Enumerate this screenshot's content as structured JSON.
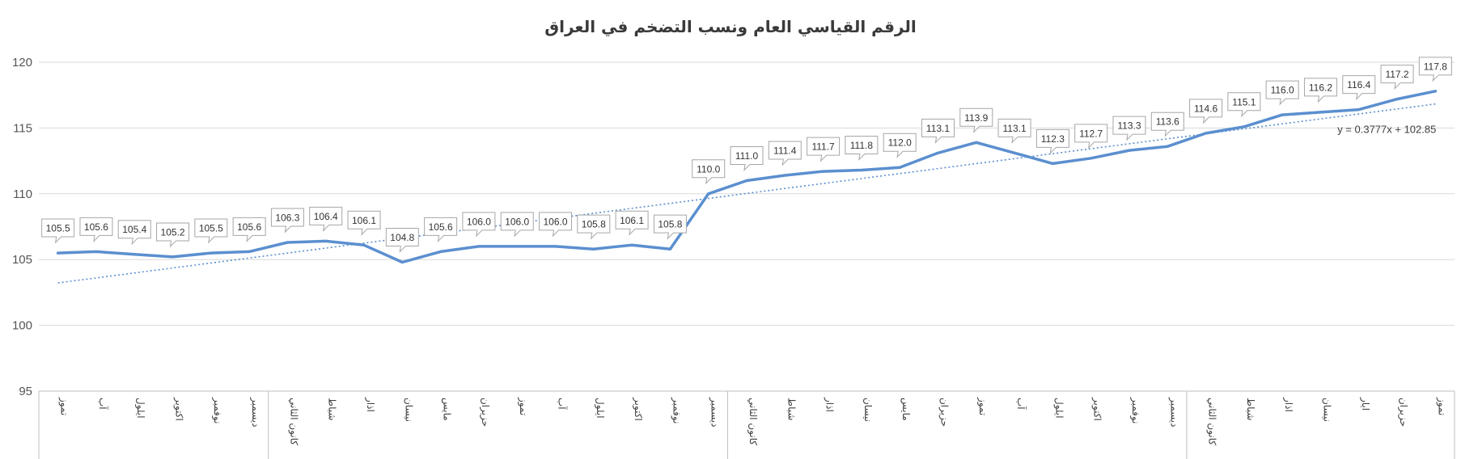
{
  "chart_data": {
    "type": "line",
    "title": "الرقم القياسي العام ونسب التضخم في العراق",
    "ylim": [
      95,
      120
    ],
    "yticks": [
      95,
      100,
      105,
      110,
      115,
      120
    ],
    "grid": true,
    "categories": [
      "تموز",
      "آب",
      "ايلول",
      "اكتوبر",
      "نوفمبر",
      "ديسمبر",
      "كانون الثاني",
      "شباط",
      "اذار",
      "نيسان",
      "مايس",
      "حزيران",
      "تموز",
      "آب",
      "ايلول",
      "اكتوبر",
      "نوفمبر",
      "ديسمبر",
      "كانون الثاني",
      "شباط",
      "اذار",
      "نيسان",
      "مايس",
      "حزيران",
      "تموز",
      "آب",
      "ايلول",
      "اكتوبر",
      "نوفمبر",
      "ديسمبر",
      "كانون الثاني",
      "شباط",
      "اذار",
      "نيسان",
      "ايار",
      "حزيران",
      "تموز"
    ],
    "series": [
      {
        "values": [
          105.5,
          105.6,
          105.4,
          105.2,
          105.5,
          105.6,
          106.3,
          106.4,
          106.1,
          104.8,
          105.6,
          106.0,
          106.0,
          106.0,
          105.8,
          106.1,
          105.8,
          110.0,
          111.0,
          111.4,
          111.7,
          111.8,
          112.0,
          113.1,
          113.9,
          113.1,
          112.3,
          112.7,
          113.3,
          113.6,
          114.6,
          115.1,
          116.0,
          116.2,
          116.4,
          117.2,
          117.8
        ],
        "color": "#5b8fcf",
        "data_labels": [
          "105.5",
          "105.6",
          "105.4",
          "105.2",
          "105.5",
          "105.6",
          "106.3",
          "106.4",
          "106.1",
          "104.8",
          "105.6",
          "106.0",
          "106.0",
          "106.0",
          "105.8",
          "106.1",
          "105.8",
          "110.0",
          "111.0",
          "111.4",
          "111.7",
          "111.8",
          "112.0",
          "113.1",
          "113.9",
          "113.1",
          "112.3",
          "112.7",
          "113.3",
          "113.6",
          "114.6",
          "115.1",
          "116.0",
          "116.2",
          "116.4",
          "117.2",
          "117.8"
        ]
      }
    ],
    "trendline": {
      "slope": 0.3777,
      "intercept": 102.85,
      "label": "y = 0.3777x + 102.85",
      "style": "dotted",
      "color": "#5b8fcf"
    }
  }
}
